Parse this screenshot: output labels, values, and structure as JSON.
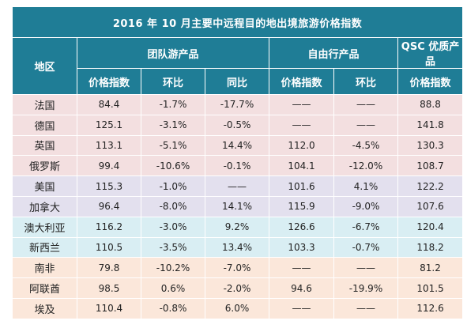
{
  "title": "2016 年 10 月主要中远程目的地出境旅游价格指数",
  "headers": {
    "region": "地区",
    "group": "团队游产品",
    "independent": "自由行产品",
    "qsc": "QSC 优质产品",
    "group_sub": [
      "价格指数",
      "环比",
      "同比"
    ],
    "independent_sub": [
      "价格指数",
      "环比"
    ],
    "qsc_sub": [
      "价格指数"
    ]
  },
  "rows": [
    {
      "group": "europe",
      "cells": [
        "法国",
        "84.4",
        "-1.7%",
        "-17.7%",
        "——",
        "——",
        "88.8"
      ]
    },
    {
      "group": "europe",
      "cells": [
        "德国",
        "125.1",
        "-3.1%",
        "-0.5%",
        "——",
        "——",
        "141.8"
      ]
    },
    {
      "group": "europe",
      "cells": [
        "英国",
        "113.1",
        "-5.1%",
        "14.4%",
        "112.0",
        "-4.5%",
        "130.3"
      ]
    },
    {
      "group": "europe",
      "cells": [
        "俄罗斯",
        "99.4",
        "-10.6%",
        "-0.1%",
        "104.1",
        "-12.0%",
        "108.7"
      ]
    },
    {
      "group": "america",
      "cells": [
        "美国",
        "115.3",
        "-1.0%",
        "——",
        "101.6",
        "4.1%",
        "122.2"
      ]
    },
    {
      "group": "america",
      "cells": [
        "加拿大",
        "96.4",
        "-8.0%",
        "14.1%",
        "115.9",
        "-9.0%",
        "107.6"
      ]
    },
    {
      "group": "oceania",
      "cells": [
        "澳大利亚",
        "116.2",
        "-3.0%",
        "9.2%",
        "126.6",
        "-6.7%",
        "120.4"
      ]
    },
    {
      "group": "oceania",
      "cells": [
        "新西兰",
        "110.5",
        "-3.5%",
        "13.4%",
        "103.3",
        "-0.7%",
        "118.2"
      ]
    },
    {
      "group": "other",
      "cells": [
        "南非",
        "79.8",
        "-10.2%",
        "-7.0%",
        "——",
        "——",
        "81.2"
      ]
    },
    {
      "group": "other",
      "cells": [
        "阿联酋",
        "98.5",
        "0.6%",
        "-2.0%",
        "94.6",
        "-19.9%",
        "101.5"
      ]
    },
    {
      "group": "other",
      "cells": [
        "埃及",
        "110.4",
        "-0.8%",
        "6.0%",
        "——",
        "——",
        "112.6"
      ]
    }
  ]
}
